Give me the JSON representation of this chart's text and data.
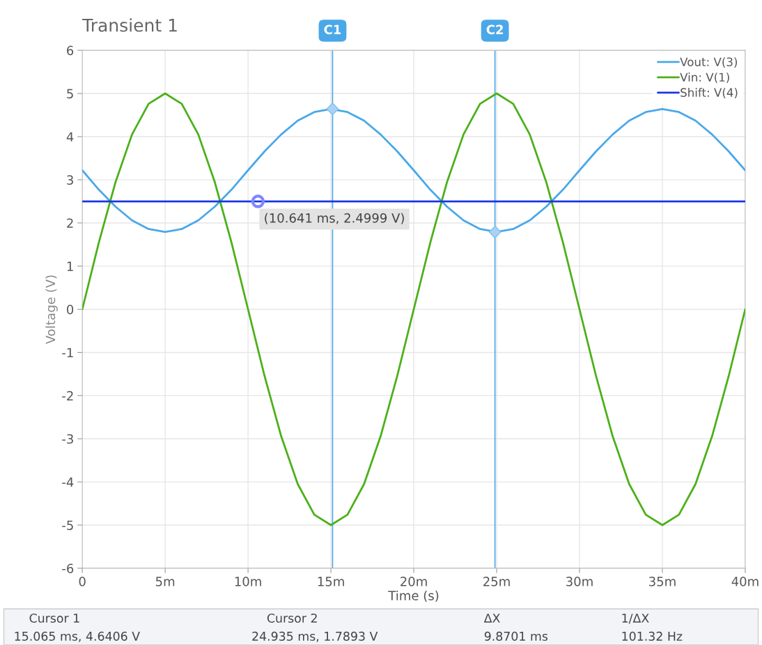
{
  "chart_data": {
    "type": "line",
    "title": "Transient 1",
    "xlabel": "Time (s)",
    "ylabel": "Voltage (V)",
    "xlim": [
      0,
      40
    ],
    "ylim": [
      -6,
      6
    ],
    "xticks": [
      0,
      {
        "value": 5,
        "label": "5m"
      },
      {
        "value": 10,
        "label": "10m"
      },
      {
        "value": 15,
        "label": "15m"
      },
      {
        "value": 20,
        "label": "20m"
      },
      {
        "value": 25,
        "label": "25m"
      },
      {
        "value": 30,
        "label": "30m"
      },
      {
        "value": 35,
        "label": "35m"
      },
      {
        "value": 40,
        "label": "40m"
      }
    ],
    "yticks": [
      -6,
      -5,
      -4,
      -3,
      -2,
      -1,
      0,
      1,
      2,
      3,
      4,
      5,
      6
    ],
    "grid": true,
    "legend": "top right",
    "x": [
      0,
      1,
      2,
      3,
      4,
      5,
      6,
      7,
      8,
      9,
      10,
      11,
      12,
      13,
      14,
      15,
      16,
      17,
      18,
      19,
      20,
      21,
      22,
      23,
      24,
      25,
      26,
      27,
      28,
      29,
      30,
      31,
      32,
      33,
      34,
      35,
      36,
      37,
      38,
      39,
      40
    ],
    "series": [
      {
        "name": "Vout: V(3)",
        "color": "#4aa8e8",
        "values": [
          3.22,
          2.77,
          2.38,
          2.06,
          1.86,
          1.79,
          1.86,
          2.06,
          2.38,
          2.77,
          3.22,
          3.66,
          4.05,
          4.37,
          4.57,
          4.64,
          4.57,
          4.37,
          4.05,
          3.66,
          3.22,
          2.77,
          2.38,
          2.06,
          1.86,
          1.79,
          1.86,
          2.06,
          2.38,
          2.77,
          3.22,
          3.66,
          4.05,
          4.37,
          4.57,
          4.64,
          4.57,
          4.37,
          4.05,
          3.66,
          3.22
        ]
      },
      {
        "name": "Vin: V(1)",
        "color": "#4cb01a",
        "values": [
          0,
          1.55,
          2.94,
          4.05,
          4.76,
          5,
          4.76,
          4.05,
          2.94,
          1.55,
          0,
          -1.55,
          -2.94,
          -4.05,
          -4.76,
          -5,
          -4.76,
          -4.05,
          -2.94,
          -1.55,
          0,
          1.55,
          2.94,
          4.05,
          4.76,
          5,
          4.76,
          4.05,
          2.94,
          1.55,
          0,
          -1.55,
          -2.94,
          -4.05,
          -4.76,
          -5,
          -4.76,
          -4.05,
          -2.94,
          -1.55,
          0
        ]
      },
      {
        "name": "Shift: V(4)",
        "color": "#1a35e8",
        "x": [
          0,
          40
        ],
        "values": [
          2.5,
          2.5
        ]
      },
      {
        "type": "scatter",
        "marker": "diamond",
        "color": "#a9d3f5",
        "x": [
          15.1,
          24.9
        ],
        "values": [
          4.64,
          1.79
        ]
      },
      {
        "type": "scatter",
        "marker": "circle",
        "color": "#7f86ff",
        "x": [
          10.6
        ],
        "values": [
          2.5
        ]
      }
    ],
    "ref_lines": [
      {
        "axis": "x",
        "value": 15.1,
        "label": "C1",
        "color": "#4aa8e8"
      },
      {
        "axis": "x",
        "value": 24.9,
        "label": "C2",
        "color": "#4aa8e8"
      }
    ],
    "annotations": [
      {
        "text": "(10.641 ms, 2.4999 V)",
        "x": 10.6,
        "y": 2.5
      },
      "Cursor 1",
      "Cursor 2",
      "ΔX",
      "1/ΔX",
      "15.065 ms, 4.6406 V",
      "24.935 ms, 1.7893 V",
      "9.8701 ms",
      "101.32 Hz"
    ]
  }
}
